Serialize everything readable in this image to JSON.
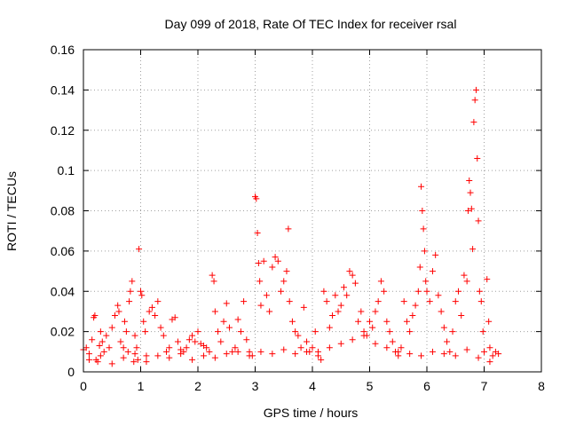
{
  "chart_data": {
    "type": "scatter",
    "title": "Day 099 of 2018, Rate Of TEC Index for receiver rsal",
    "xlabel": "GPS time / hours",
    "ylabel": "ROTI / TECUs",
    "xlim": [
      0,
      8
    ],
    "ylim": [
      0,
      0.16
    ],
    "x_ticks": [
      0,
      1,
      2,
      3,
      4,
      5,
      6,
      7,
      8
    ],
    "y_ticks": [
      0,
      0.02,
      0.04,
      0.06,
      0.08,
      0.1,
      0.12,
      0.14,
      0.16
    ],
    "x_tick_labels": [
      "0",
      "1",
      "2",
      "3",
      "4",
      "5",
      "6",
      "7",
      "8"
    ],
    "y_tick_labels": [
      "0",
      "0.02",
      "0.04",
      "0.06",
      "0.08",
      "0.1",
      "0.12",
      "0.14",
      "0.16"
    ],
    "grid": true,
    "marker": "+",
    "color": "#ff0000",
    "series": [
      {
        "name": "ROTI",
        "points": [
          [
            0.0,
            0.011
          ],
          [
            0.05,
            0.012
          ],
          [
            0.1,
            0.009
          ],
          [
            0.15,
            0.016
          ],
          [
            0.18,
            0.027
          ],
          [
            0.2,
            0.028
          ],
          [
            0.22,
            0.006
          ],
          [
            0.25,
            0.005
          ],
          [
            0.28,
            0.013
          ],
          [
            0.3,
            0.02
          ],
          [
            0.33,
            0.015
          ],
          [
            0.36,
            0.01
          ],
          [
            0.4,
            0.018
          ],
          [
            0.45,
            0.012
          ],
          [
            0.5,
            0.022
          ],
          [
            0.55,
            0.028
          ],
          [
            0.6,
            0.033
          ],
          [
            0.62,
            0.03
          ],
          [
            0.65,
            0.015
          ],
          [
            0.7,
            0.012
          ],
          [
            0.72,
            0.025
          ],
          [
            0.75,
            0.02
          ],
          [
            0.78,
            0.01
          ],
          [
            0.8,
            0.035
          ],
          [
            0.82,
            0.04
          ],
          [
            0.85,
            0.045
          ],
          [
            0.88,
            0.005
          ],
          [
            0.9,
            0.018
          ],
          [
            0.93,
            0.012
          ],
          [
            0.95,
            0.006
          ],
          [
            0.97,
            0.061
          ],
          [
            1.0,
            0.04
          ],
          [
            1.02,
            0.038
          ],
          [
            1.05,
            0.025
          ],
          [
            1.08,
            0.02
          ],
          [
            1.1,
            0.008
          ],
          [
            1.15,
            0.03
          ],
          [
            1.2,
            0.032
          ],
          [
            1.25,
            0.028
          ],
          [
            1.3,
            0.035
          ],
          [
            1.35,
            0.022
          ],
          [
            1.4,
            0.018
          ],
          [
            1.45,
            0.01
          ],
          [
            1.5,
            0.012
          ],
          [
            1.55,
            0.026
          ],
          [
            1.6,
            0.027
          ],
          [
            1.65,
            0.015
          ],
          [
            1.7,
            0.011
          ],
          [
            1.75,
            0.01
          ],
          [
            1.8,
            0.012
          ],
          [
            1.85,
            0.016
          ],
          [
            1.9,
            0.018
          ],
          [
            1.95,
            0.015
          ],
          [
            2.0,
            0.02
          ],
          [
            2.05,
            0.014
          ],
          [
            2.1,
            0.013
          ],
          [
            2.15,
            0.012
          ],
          [
            2.2,
            0.01
          ],
          [
            2.25,
            0.048
          ],
          [
            2.28,
            0.045
          ],
          [
            2.3,
            0.03
          ],
          [
            2.35,
            0.02
          ],
          [
            2.4,
            0.015
          ],
          [
            2.45,
            0.025
          ],
          [
            2.5,
            0.034
          ],
          [
            2.55,
            0.022
          ],
          [
            2.6,
            0.01
          ],
          [
            2.65,
            0.012
          ],
          [
            2.7,
            0.026
          ],
          [
            2.75,
            0.02
          ],
          [
            2.8,
            0.035
          ],
          [
            2.85,
            0.016
          ],
          [
            2.9,
            0.01
          ],
          [
            2.95,
            0.008
          ],
          [
            3.0,
            0.087
          ],
          [
            3.02,
            0.086
          ],
          [
            3.04,
            0.069
          ],
          [
            3.06,
            0.054
          ],
          [
            3.08,
            0.045
          ],
          [
            3.1,
            0.033
          ],
          [
            3.15,
            0.055
          ],
          [
            3.2,
            0.038
          ],
          [
            3.25,
            0.03
          ],
          [
            3.3,
            0.052
          ],
          [
            3.35,
            0.057
          ],
          [
            3.4,
            0.055
          ],
          [
            3.45,
            0.04
          ],
          [
            3.5,
            0.045
          ],
          [
            3.55,
            0.05
          ],
          [
            3.58,
            0.071
          ],
          [
            3.6,
            0.035
          ],
          [
            3.65,
            0.025
          ],
          [
            3.7,
            0.02
          ],
          [
            3.75,
            0.018
          ],
          [
            3.8,
            0.012
          ],
          [
            3.85,
            0.032
          ],
          [
            3.9,
            0.015
          ],
          [
            3.95,
            0.01
          ],
          [
            4.0,
            0.012
          ],
          [
            4.05,
            0.02
          ],
          [
            4.1,
            0.008
          ],
          [
            4.15,
            0.006
          ],
          [
            4.2,
            0.04
          ],
          [
            4.25,
            0.035
          ],
          [
            4.3,
            0.022
          ],
          [
            4.35,
            0.028
          ],
          [
            4.4,
            0.038
          ],
          [
            4.45,
            0.03
          ],
          [
            4.5,
            0.033
          ],
          [
            4.55,
            0.042
          ],
          [
            4.6,
            0.038
          ],
          [
            4.65,
            0.05
          ],
          [
            4.7,
            0.048
          ],
          [
            4.75,
            0.044
          ],
          [
            4.8,
            0.025
          ],
          [
            4.85,
            0.03
          ],
          [
            4.9,
            0.02
          ],
          [
            4.95,
            0.018
          ],
          [
            5.0,
            0.025
          ],
          [
            5.05,
            0.022
          ],
          [
            5.1,
            0.03
          ],
          [
            5.15,
            0.035
          ],
          [
            5.2,
            0.045
          ],
          [
            5.25,
            0.04
          ],
          [
            5.3,
            0.025
          ],
          [
            5.35,
            0.02
          ],
          [
            5.4,
            0.015
          ],
          [
            5.45,
            0.01
          ],
          [
            5.5,
            0.008
          ],
          [
            5.55,
            0.012
          ],
          [
            5.6,
            0.035
          ],
          [
            5.65,
            0.025
          ],
          [
            5.7,
            0.02
          ],
          [
            5.75,
            0.028
          ],
          [
            5.8,
            0.033
          ],
          [
            5.85,
            0.04
          ],
          [
            5.88,
            0.052
          ],
          [
            5.9,
            0.092
          ],
          [
            5.92,
            0.08
          ],
          [
            5.94,
            0.071
          ],
          [
            5.96,
            0.06
          ],
          [
            5.98,
            0.045
          ],
          [
            6.0,
            0.04
          ],
          [
            6.05,
            0.035
          ],
          [
            6.1,
            0.05
          ],
          [
            6.15,
            0.058
          ],
          [
            6.2,
            0.038
          ],
          [
            6.25,
            0.03
          ],
          [
            6.3,
            0.022
          ],
          [
            6.35,
            0.015
          ],
          [
            6.4,
            0.01
          ],
          [
            6.45,
            0.02
          ],
          [
            6.5,
            0.035
          ],
          [
            6.55,
            0.04
          ],
          [
            6.6,
            0.028
          ],
          [
            6.65,
            0.048
          ],
          [
            6.7,
            0.045
          ],
          [
            6.72,
            0.08
          ],
          [
            6.74,
            0.095
          ],
          [
            6.76,
            0.089
          ],
          [
            6.78,
            0.081
          ],
          [
            6.8,
            0.061
          ],
          [
            6.82,
            0.124
          ],
          [
            6.84,
            0.135
          ],
          [
            6.86,
            0.14
          ],
          [
            6.88,
            0.106
          ],
          [
            6.9,
            0.075
          ],
          [
            6.92,
            0.04
          ],
          [
            6.95,
            0.035
          ],
          [
            6.98,
            0.02
          ],
          [
            7.0,
            0.01
          ],
          [
            7.05,
            0.046
          ],
          [
            7.08,
            0.025
          ],
          [
            7.1,
            0.012
          ],
          [
            7.15,
            0.008
          ],
          [
            7.2,
            0.01
          ],
          [
            7.25,
            0.009
          ],
          [
            0.1,
            0.006
          ],
          [
            0.3,
            0.008
          ],
          [
            0.5,
            0.004
          ],
          [
            0.7,
            0.007
          ],
          [
            0.9,
            0.009
          ],
          [
            1.1,
            0.005
          ],
          [
            1.3,
            0.008
          ],
          [
            1.5,
            0.007
          ],
          [
            1.7,
            0.009
          ],
          [
            1.9,
            0.006
          ],
          [
            2.1,
            0.008
          ],
          [
            2.3,
            0.007
          ],
          [
            2.5,
            0.009
          ],
          [
            2.7,
            0.01
          ],
          [
            2.9,
            0.008
          ],
          [
            3.1,
            0.01
          ],
          [
            3.3,
            0.009
          ],
          [
            3.5,
            0.011
          ],
          [
            3.7,
            0.009
          ],
          [
            3.9,
            0.01
          ],
          [
            4.1,
            0.01
          ],
          [
            4.3,
            0.012
          ],
          [
            4.5,
            0.014
          ],
          [
            4.7,
            0.016
          ],
          [
            4.9,
            0.018
          ],
          [
            5.1,
            0.014
          ],
          [
            5.3,
            0.012
          ],
          [
            5.5,
            0.01
          ],
          [
            5.7,
            0.009
          ],
          [
            5.9,
            0.008
          ],
          [
            6.1,
            0.01
          ],
          [
            6.3,
            0.009
          ],
          [
            6.5,
            0.008
          ],
          [
            6.7,
            0.011
          ],
          [
            6.9,
            0.007
          ],
          [
            7.1,
            0.005
          ]
        ]
      }
    ]
  }
}
